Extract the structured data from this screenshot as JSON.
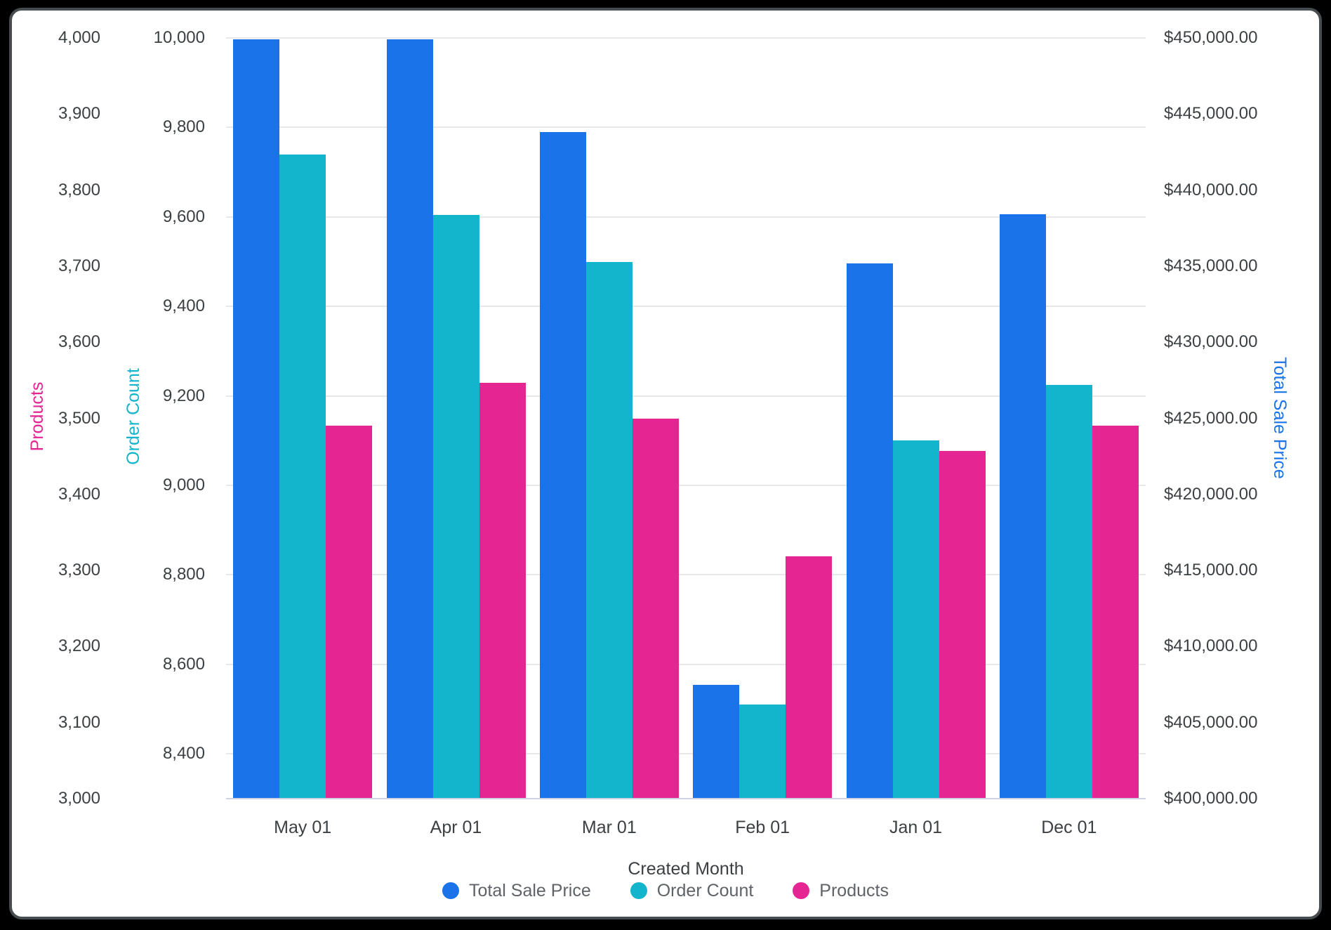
{
  "chart_data": {
    "type": "bar",
    "title": "",
    "categories": [
      "May 01",
      "Apr 01",
      "Mar 01",
      "Feb 01",
      "Jan 01",
      "Dec 01"
    ],
    "series": [
      {
        "name": "Total Sale Price",
        "axis": "price",
        "color": "#1A73E8",
        "values": [
          449900,
          449900,
          443800,
          407500,
          435200,
          438400
        ]
      },
      {
        "name": "Order Count",
        "axis": "order",
        "color": "#12B5CB",
        "values": [
          9740,
          9605,
          9500,
          8510,
          9100,
          9225
        ]
      },
      {
        "name": "Products",
        "axis": "products",
        "color": "#E52592",
        "values": [
          3490,
          3547,
          3500,
          3319,
          3457,
          3490
        ]
      }
    ],
    "x_axis": {
      "title": "Created Month"
    },
    "y_axes": {
      "products": {
        "title": "Products",
        "color": "#E52592",
        "min": 3000,
        "max": 4000,
        "ticks": [
          4000,
          3900,
          3800,
          3700,
          3600,
          3500,
          3400,
          3300,
          3200,
          3100,
          3000
        ],
        "tick_labels": [
          "4,000",
          "3,900",
          "3,800",
          "3,700",
          "3,600",
          "3,500",
          "3,400",
          "3,300",
          "3,200",
          "3,100",
          "3,000"
        ]
      },
      "order": {
        "title": "Order Count",
        "color": "#12B5CB",
        "min": 8300,
        "max": 10000,
        "ticks": [
          10000,
          9800,
          9600,
          9400,
          9200,
          9000,
          8800,
          8600,
          8400
        ],
        "tick_labels": [
          "10,000",
          "9,800",
          "9,600",
          "9,400",
          "9,200",
          "9,000",
          "8,800",
          "8,600",
          "8,400"
        ]
      },
      "price": {
        "title": "Total Sale Price",
        "color": "#1A73E8",
        "min": 400000,
        "max": 450000,
        "ticks": [
          450000,
          445000,
          440000,
          435000,
          430000,
          425000,
          420000,
          415000,
          410000,
          405000,
          400000
        ],
        "tick_labels": [
          "$450,000.00",
          "$445,000.00",
          "$440,000.00",
          "$435,000.00",
          "$430,000.00",
          "$425,000.00",
          "$420,000.00",
          "$415,000.00",
          "$410,000.00",
          "$405,000.00",
          "$400,000.00"
        ]
      }
    },
    "legend": [
      "Total Sale Price",
      "Order Count",
      "Products"
    ],
    "layout_hints": {
      "grid": "horizontal gridlines at Order Count ticks",
      "legend_position": "bottom-center"
    }
  },
  "style": {
    "tick_text_color": "#3C4043",
    "legend_text_color": "#5F6368",
    "gridline_color": "#E8E8E8",
    "baseline_color": "#CCD3E2",
    "card_background": "#FFFFFF",
    "frame_background": "#000000"
  }
}
